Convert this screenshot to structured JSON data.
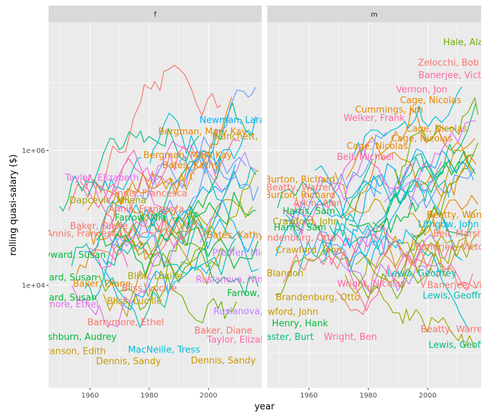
{
  "chart_data": {
    "type": "line",
    "xlabel": "year",
    "ylabel": "rolling quasi-salary ($)",
    "x_ticks": [
      1960,
      1980,
      2000
    ],
    "xlim": [
      1946,
      2018
    ],
    "y_ticks": [
      {
        "value": 10000,
        "label": "1e+04"
      },
      {
        "value": 1000000,
        "label": "1e+06"
      }
    ],
    "ylim": [
      300,
      80000000
    ],
    "y_scale": "log10",
    "palette": [
      "#F8766D",
      "#E58700",
      "#C99800",
      "#A3A500",
      "#6BB100",
      "#00BA38",
      "#00BF7D",
      "#00C0AF",
      "#00BCD8",
      "#00B0F6",
      "#619CFF",
      "#B983FF",
      "#E76BF3",
      "#FD61D1",
      "#FF67A4"
    ],
    "panels": [
      {
        "strip": "f",
        "labels": [
          {
            "text": "Newman, Lara",
            "x": 2008,
            "y": 2800000,
            "color": "#00B0F6"
          },
          {
            "text": "Bergman, Mary Kay",
            "x": 1998,
            "y": 1900000,
            "color": "#E58700"
          },
          {
            "text": "Blanchett, Cate",
            "x": 2013,
            "y": 1600000,
            "color": "#C99800"
          },
          {
            "text": "Bergman, Mary Kay",
            "x": 1993,
            "y": 850000,
            "color": "#E58700"
          },
          {
            "text": "Bates, Kathy",
            "x": 1994,
            "y": 600000,
            "color": "#E58700"
          },
          {
            "text": "Taylor, Elizabeth",
            "x": 1964,
            "y": 390000,
            "color": "#E76BF3"
          },
          {
            "text": "Annis, Francesca",
            "x": 1980,
            "y": 230000,
            "color": "#F8766D"
          },
          {
            "text": "Dapcevic, Milena",
            "x": 1966,
            "y": 180000,
            "color": "#A3A500"
          },
          {
            "text": "Annis, Francesca",
            "x": 1979,
            "y": 135000,
            "color": "#F8766D"
          },
          {
            "text": "Farrow, Mia",
            "x": 1977,
            "y": 100000,
            "color": "#00BA38"
          },
          {
            "text": "Baker, Diane",
            "x": 1963,
            "y": 75000,
            "color": "#F8766D"
          },
          {
            "text": "Annis, Francesca",
            "x": 1958,
            "y": 58000,
            "color": "#F8766D"
          },
          {
            "text": "Hayward, Susan",
            "x": 1953,
            "y": 28000,
            "color": "#00BA38"
          },
          {
            "text": "Hayward, Susan",
            "x": 1950,
            "y": 13000,
            "color": "#00BA38"
          },
          {
            "text": "Baker, Diane",
            "x": 1964,
            "y": 10500,
            "color": "#E58700"
          },
          {
            "text": "Bliss, Lucille",
            "x": 1982,
            "y": 13500,
            "color": "#A3A500"
          },
          {
            "text": "Bliss, Lucille",
            "x": 1980,
            "y": 9000,
            "color": "#F8766D"
          },
          {
            "text": "Hayward, Susan",
            "x": 1950,
            "y": 6500,
            "color": "#00BA38"
          },
          {
            "text": "Bliss, Lucille",
            "x": 1975,
            "y": 5800,
            "color": "#C99800"
          },
          {
            "text": "Barrymore, Ethel",
            "x": 1950,
            "y": 5200,
            "color": "#E76BF3"
          },
          {
            "text": "Barrymore, Ethel",
            "x": 1972,
            "y": 2800,
            "color": "#F8766D"
          },
          {
            "text": "Washburn, Audrey",
            "x": 1955,
            "y": 1700,
            "color": "#00BA38"
          },
          {
            "text": "Evanson, Edith",
            "x": 1954,
            "y": 1050,
            "color": "#C99800"
          },
          {
            "text": "MacNeille, Tress",
            "x": 1985,
            "y": 1100,
            "color": "#00BCD8"
          },
          {
            "text": "Dennis, Sandy",
            "x": 1973,
            "y": 740,
            "color": "#C99800"
          },
          {
            "text": "Dennis, Sandy",
            "x": 2005,
            "y": 760,
            "color": "#C99800"
          },
          {
            "text": "Baker, Diane",
            "x": 2005,
            "y": 2100,
            "color": "#F8766D"
          },
          {
            "text": "Taylor, Elizabeth",
            "x": 2012,
            "y": 1550,
            "color": "#FF67A4"
          },
          {
            "text": "Ruslanova, Nina",
            "x": 2014,
            "y": 4100,
            "color": "#B983FF"
          },
          {
            "text": "Farrow, Mia",
            "x": 2015,
            "y": 7600,
            "color": "#00BA38"
          },
          {
            "text": "Ruslanova, Nina",
            "x": 2008,
            "y": 12000,
            "color": "#E76BF3"
          },
          {
            "text": "Pfeiffer, Michelle",
            "x": 2014,
            "y": 30000,
            "color": "#B983FF"
          },
          {
            "text": "Bates, Kathy",
            "x": 2009,
            "y": 55000,
            "color": "#E58700"
          }
        ]
      },
      {
        "strip": "m",
        "labels": [
          {
            "text": "Hale, Alan",
            "x": 2013,
            "y": 40000000,
            "color": "#6BB100"
          },
          {
            "text": "Zelocchi, Bob",
            "x": 2007,
            "y": 20000000,
            "color": "#F8766D"
          },
          {
            "text": "Banerjee, Victor",
            "x": 2009,
            "y": 13000000,
            "color": "#FF67A4"
          },
          {
            "text": "Vernon, Jon",
            "x": 1998,
            "y": 8000000,
            "color": "#FF67A4"
          },
          {
            "text": "Cage, Nicolas",
            "x": 2001,
            "y": 5500000,
            "color": "#E58700"
          },
          {
            "text": "Cummings, Jim",
            "x": 1987,
            "y": 4000000,
            "color": "#E58700"
          },
          {
            "text": "Welker, Frank",
            "x": 1982,
            "y": 3000000,
            "color": "#FF67A4"
          },
          {
            "text": "Cage, Nicolas",
            "x": 2003,
            "y": 2100000,
            "color": "#E58700"
          },
          {
            "text": "Cage, Nicolas",
            "x": 1998,
            "y": 1500000,
            "color": "#E58700"
          },
          {
            "text": "Cage, Nicolas",
            "x": 1983,
            "y": 1150000,
            "color": "#E58700"
          },
          {
            "text": "Bell, Michael",
            "x": 1979,
            "y": 800000,
            "color": "#FF67A4"
          },
          {
            "text": "Burton, Richard",
            "x": 1957,
            "y": 370000,
            "color": "#E58700"
          },
          {
            "text": "Beatty, Warren",
            "x": 1957,
            "y": 280000,
            "color": "#F8766D"
          },
          {
            "text": "Burton, Richard",
            "x": 1957,
            "y": 215000,
            "color": "#E58700"
          },
          {
            "text": "Arkin, Alan",
            "x": 1963,
            "y": 165000,
            "color": "#F8766D"
          },
          {
            "text": "Harris, Sam",
            "x": 1960,
            "y": 125000,
            "color": "#00BA38"
          },
          {
            "text": "Crawford, John",
            "x": 1959,
            "y": 88000,
            "color": "#A3A500"
          },
          {
            "text": "Harris, Sam",
            "x": 1957,
            "y": 72000,
            "color": "#00BA38"
          },
          {
            "text": "Brandenburg, Otto",
            "x": 1955,
            "y": 50000,
            "color": "#F8766D"
          },
          {
            "text": "Crawford, John",
            "x": 1960,
            "y": 33000,
            "color": "#C99800"
          },
          {
            "text": "Blandon",
            "x": 1952,
            "y": 15000,
            "color": "#C99800"
          },
          {
            "text": "Brandenburg, Otto",
            "x": 1963,
            "y": 6600,
            "color": "#C99800"
          },
          {
            "text": "Crawford, John",
            "x": 1952,
            "y": 4000,
            "color": "#C99800"
          },
          {
            "text": "Henry, Hank",
            "x": 1957,
            "y": 2700,
            "color": "#00BA38"
          },
          {
            "text": "Lancaster, Burt",
            "x": 1950,
            "y": 1700,
            "color": "#00BF7D"
          },
          {
            "text": "Wright, Ben",
            "x": 1974,
            "y": 1700,
            "color": "#FF67A4"
          },
          {
            "text": "Beatty, Warren",
            "x": 2009,
            "y": 2200,
            "color": "#F8766D"
          },
          {
            "text": "Lewis, Geoffrey",
            "x": 2012,
            "y": 1300,
            "color": "#00BF7D"
          },
          {
            "text": "Lewis, Geoffrey",
            "x": 2010,
            "y": 7000,
            "color": "#00C0AF"
          },
          {
            "text": "Banerjee, Victor",
            "x": 2012,
            "y": 10000,
            "color": "#F8766D"
          },
          {
            "text": "Lewis, Geoffrey",
            "x": 1998,
            "y": 15000,
            "color": "#00C0AF"
          },
          {
            "text": "Banerjee, Victor",
            "x": 2008,
            "y": 37000,
            "color": "#F8766D"
          },
          {
            "text": "Bell, Marshall",
            "x": 2012,
            "y": 58000,
            "color": "#F8766D"
          },
          {
            "text": "Lithgow, John",
            "x": 2007,
            "y": 80000,
            "color": "#00BCD8"
          },
          {
            "text": "Beatty, Warren",
            "x": 2011,
            "y": 110000,
            "color": "#E58700"
          },
          {
            "text": "Wright, Nicolas",
            "x": 1981,
            "y": 10500,
            "color": "#FF67A4"
          }
        ]
      }
    ]
  }
}
